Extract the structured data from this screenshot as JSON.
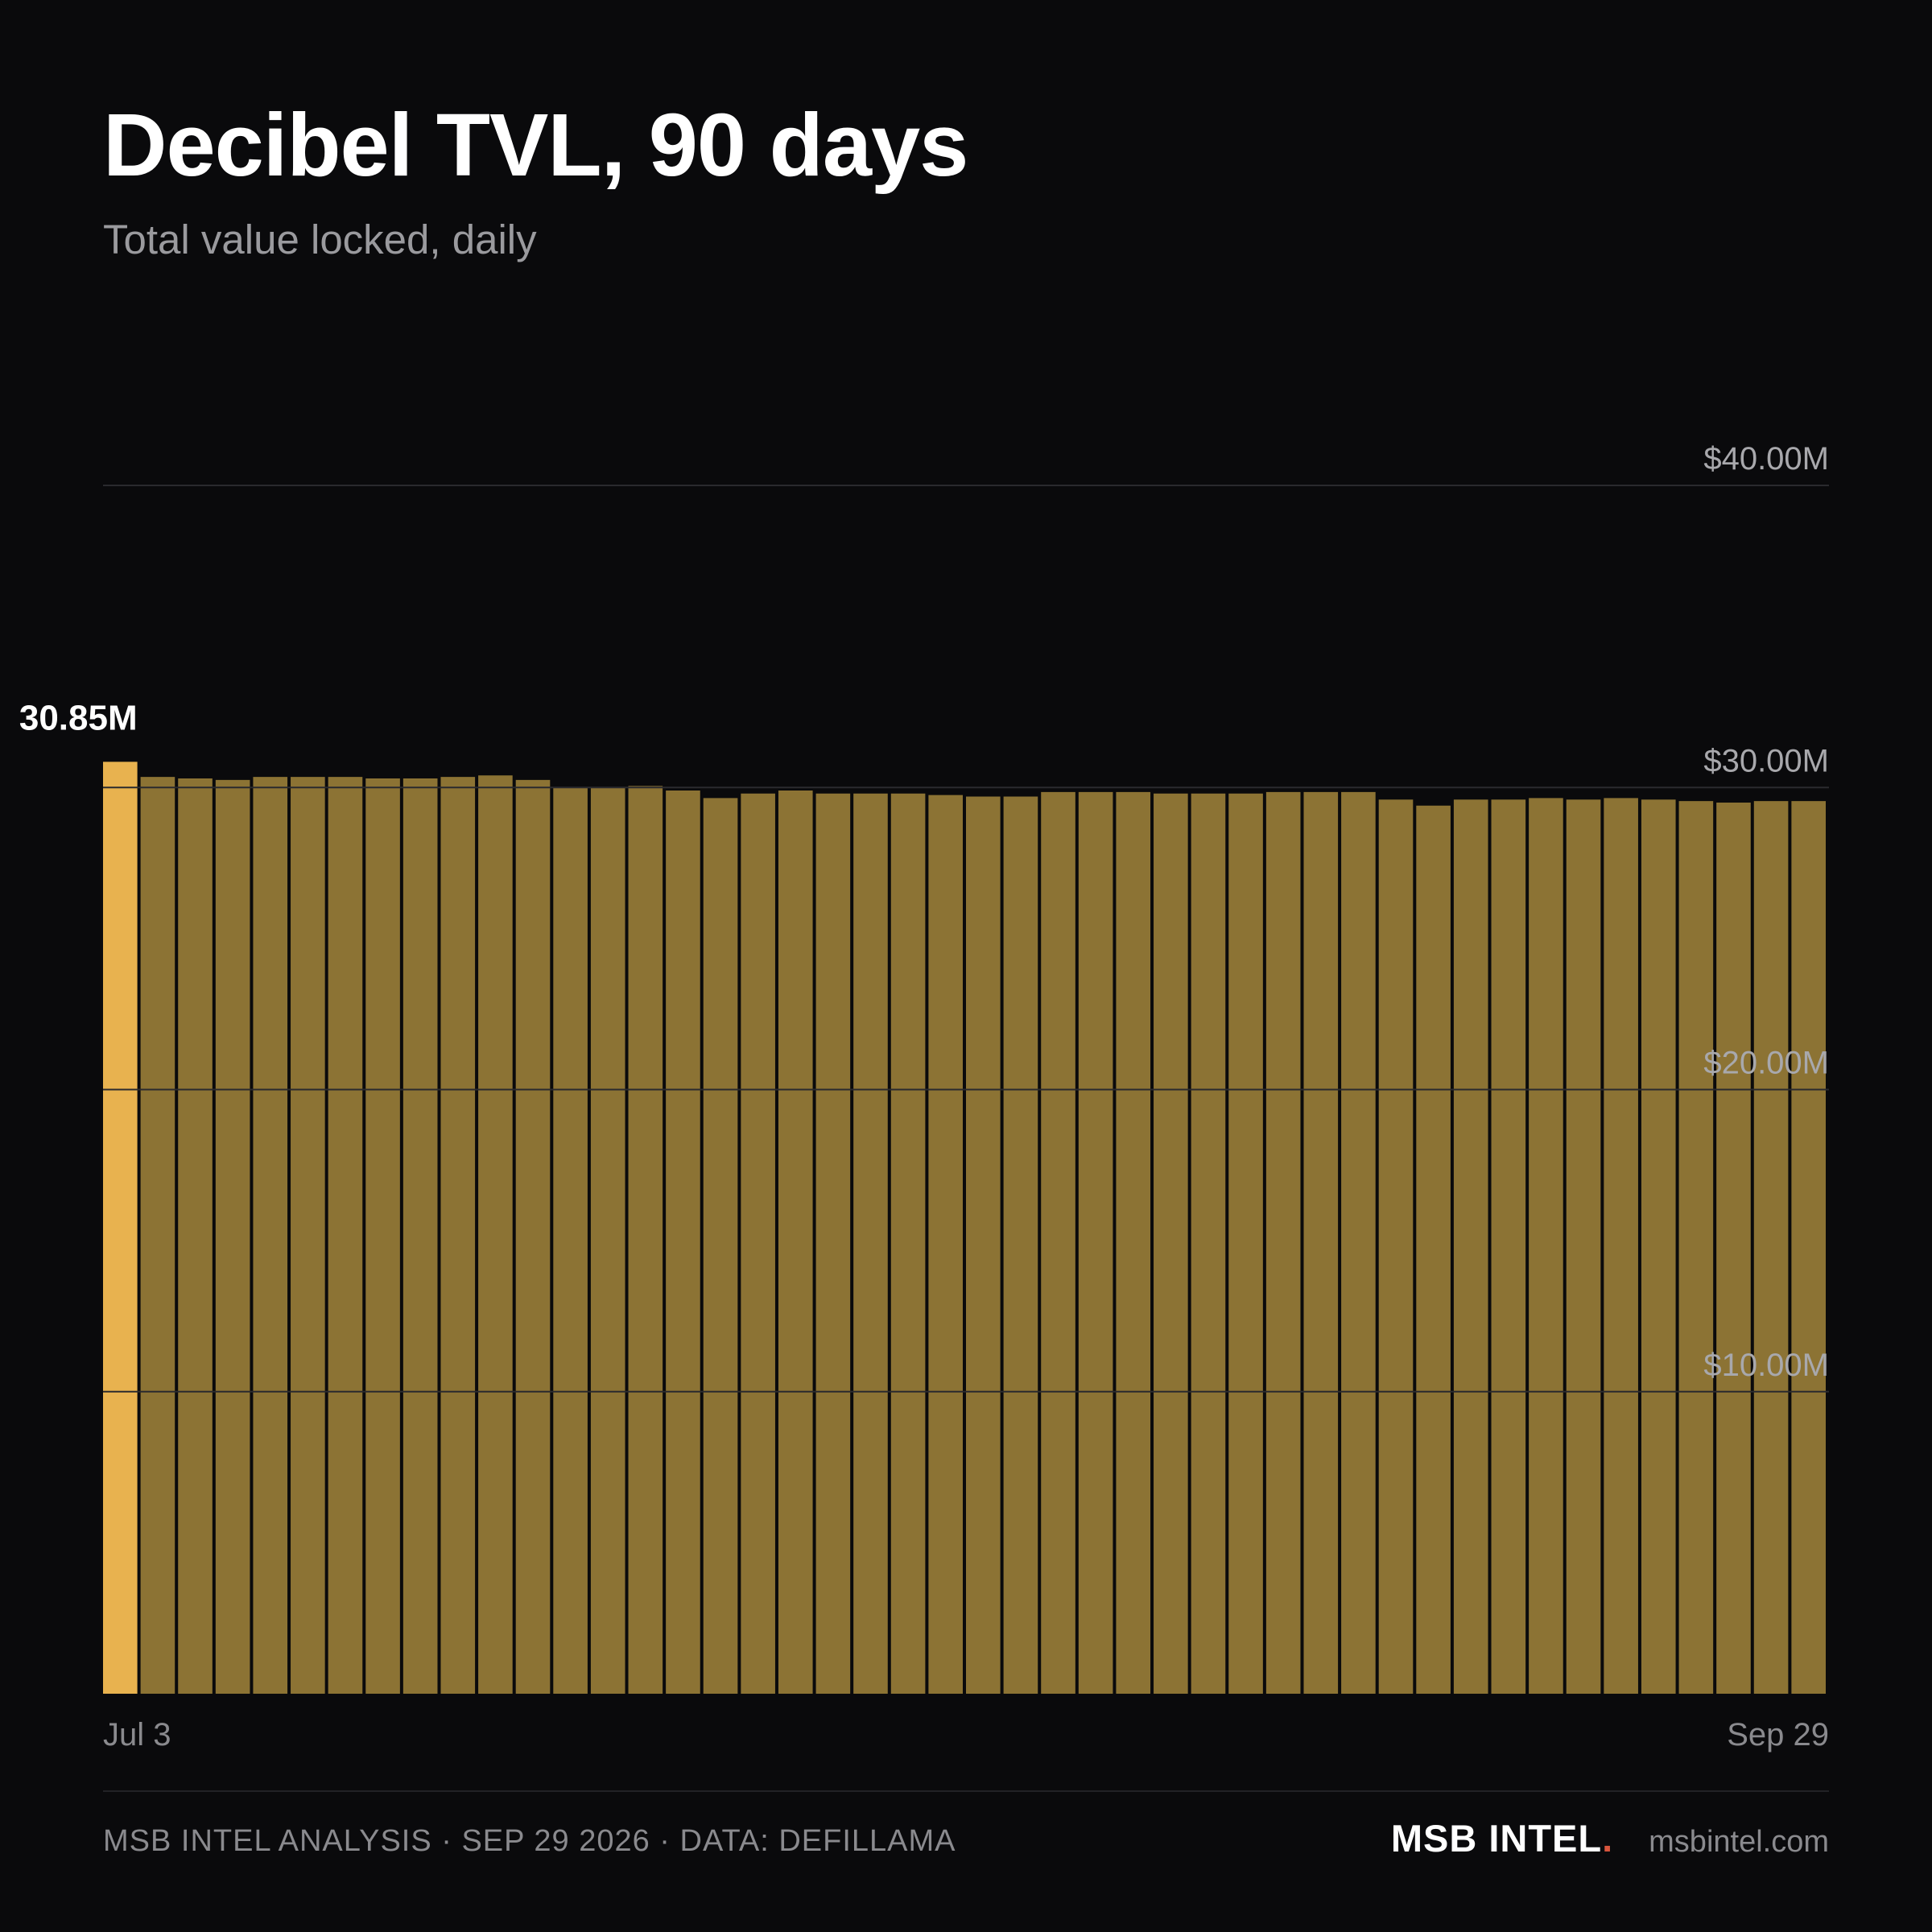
{
  "header": {
    "title": "Decibel TVL, 90 days",
    "subtitle": "Total value locked, daily"
  },
  "chart_data": {
    "type": "bar",
    "title": "Decibel TVL, 90 days",
    "subtitle": "Total value locked, daily",
    "xlabel": "",
    "ylabel": "",
    "ylim": [
      0,
      40
    ],
    "value_unit": "$M",
    "grid": true,
    "y_ticks": [
      {
        "value": 10,
        "label": "$10.00M"
      },
      {
        "value": 20,
        "label": "$20.00M"
      },
      {
        "value": 30,
        "label": "$30.00M"
      },
      {
        "value": 40,
        "label": "$40.00M"
      }
    ],
    "x_tick_labels": [
      "Jul 3",
      "Sep 29"
    ],
    "highlight_index": 0,
    "highlight_label": "30.85M",
    "values": [
      30.85,
      30.35,
      30.3,
      30.25,
      30.35,
      30.35,
      30.35,
      30.3,
      30.3,
      30.35,
      30.4,
      30.25,
      30.0,
      30.0,
      30.05,
      29.9,
      29.65,
      29.8,
      29.9,
      29.8,
      29.8,
      29.8,
      29.75,
      29.7,
      29.7,
      29.85,
      29.85,
      29.85,
      29.8,
      29.8,
      29.8,
      29.85,
      29.85,
      29.85,
      29.6,
      29.4,
      29.6,
      29.6,
      29.65,
      29.6,
      29.65,
      29.6,
      29.55,
      29.5,
      29.55,
      29.55
    ],
    "colors": {
      "bar": "#8c7334",
      "highlight": "#e8b24f",
      "grid": "#2a2a2e",
      "tick": "#a8a8ac"
    }
  },
  "footer": {
    "analysis": "MSB INTEL ANALYSIS · SEP 29 2026 · DATA: DEFILLAMA",
    "brand": "MSB INTEL",
    "brand_dot": ".",
    "site": "msbintel.com"
  }
}
